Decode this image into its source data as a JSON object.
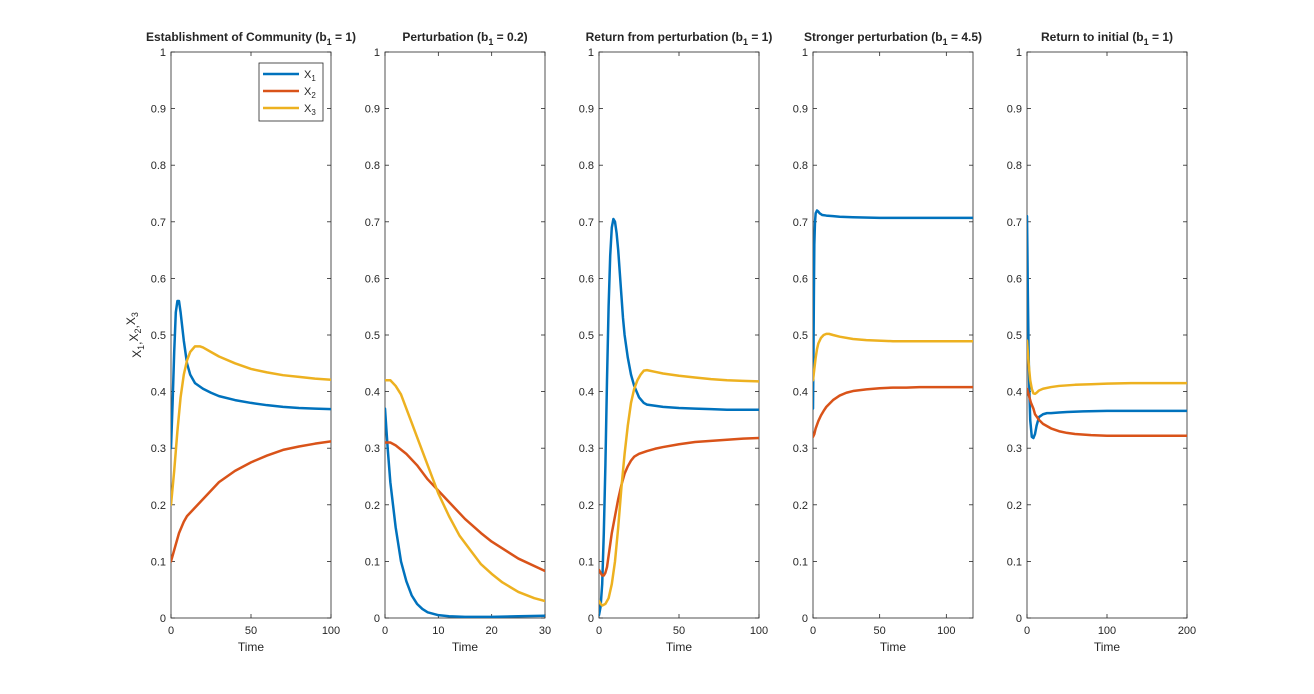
{
  "colors": {
    "x1": "#0072BD",
    "x2": "#D95319",
    "x3": "#EDB120",
    "axis": "#262626"
  },
  "legend": {
    "entries": [
      {
        "key": "x1",
        "label": "X",
        "sub": "1"
      },
      {
        "key": "x2",
        "label": "X",
        "sub": "2"
      },
      {
        "key": "x3",
        "label": "X",
        "sub": "3"
      }
    ]
  },
  "ylabel": {
    "parts": [
      [
        "X",
        "1"
      ],
      [
        "X",
        "2"
      ],
      [
        "X",
        "3"
      ]
    ],
    "separator": ","
  },
  "chart_data": [
    {
      "type": "line",
      "title": "Establishment of Community (b",
      "title_sub": "1",
      "title_tail": " = 1)",
      "xlabel": "Time",
      "xlim": [
        0,
        100
      ],
      "ylim": [
        0,
        1
      ],
      "xticks": [
        0,
        50,
        100
      ],
      "yticks": [
        0,
        0.1,
        0.2,
        0.3,
        0.4,
        0.5,
        0.6,
        0.7,
        0.8,
        0.9,
        1
      ],
      "series": [
        {
          "key": "x1",
          "x": [
            0,
            1,
            2,
            3,
            4,
            5,
            6,
            8,
            10,
            12,
            15,
            20,
            25,
            30,
            40,
            50,
            60,
            70,
            80,
            90,
            100
          ],
          "y": [
            0.3,
            0.38,
            0.47,
            0.54,
            0.56,
            0.56,
            0.54,
            0.49,
            0.45,
            0.43,
            0.415,
            0.405,
            0.398,
            0.392,
            0.385,
            0.38,
            0.376,
            0.373,
            0.371,
            0.37,
            0.369
          ]
        },
        {
          "key": "x2",
          "x": [
            0,
            2,
            5,
            8,
            10,
            15,
            20,
            25,
            30,
            40,
            50,
            60,
            70,
            80,
            90,
            100
          ],
          "y": [
            0.1,
            0.12,
            0.15,
            0.17,
            0.18,
            0.195,
            0.21,
            0.225,
            0.24,
            0.26,
            0.275,
            0.287,
            0.297,
            0.303,
            0.308,
            0.312
          ]
        },
        {
          "key": "x3",
          "x": [
            0,
            2,
            4,
            6,
            8,
            10,
            12,
            15,
            18,
            20,
            25,
            30,
            40,
            50,
            60,
            70,
            80,
            90,
            100
          ],
          "y": [
            0.2,
            0.26,
            0.33,
            0.39,
            0.43,
            0.455,
            0.47,
            0.48,
            0.48,
            0.478,
            0.47,
            0.462,
            0.45,
            0.44,
            0.434,
            0.429,
            0.426,
            0.423,
            0.421
          ]
        }
      ]
    },
    {
      "type": "line",
      "title": "Perturbation (b",
      "title_sub": "1",
      "title_tail": " = 0.2)",
      "xlabel": "Time",
      "xlim": [
        0,
        30
      ],
      "ylim": [
        0,
        1
      ],
      "xticks": [
        0,
        10,
        20,
        30
      ],
      "yticks": [
        0,
        0.1,
        0.2,
        0.3,
        0.4,
        0.5,
        0.6,
        0.7,
        0.8,
        0.9,
        1
      ],
      "series": [
        {
          "key": "x1",
          "x": [
            0,
            0.5,
            1,
            1.5,
            2,
            3,
            4,
            5,
            6,
            7,
            8,
            10,
            12,
            15,
            20,
            25,
            30
          ],
          "y": [
            0.37,
            0.3,
            0.24,
            0.2,
            0.16,
            0.1,
            0.065,
            0.04,
            0.025,
            0.016,
            0.01,
            0.005,
            0.003,
            0.002,
            0.002,
            0.003,
            0.004
          ]
        },
        {
          "key": "x2",
          "x": [
            0,
            1,
            2,
            4,
            6,
            8,
            10,
            12,
            15,
            18,
            20,
            25,
            30
          ],
          "y": [
            0.31,
            0.31,
            0.305,
            0.29,
            0.27,
            0.245,
            0.225,
            0.205,
            0.175,
            0.15,
            0.135,
            0.105,
            0.083
          ]
        },
        {
          "key": "x3",
          "x": [
            0,
            1,
            2,
            3,
            4,
            5,
            6,
            8,
            10,
            12,
            14,
            16,
            18,
            20,
            22,
            25,
            28,
            30
          ],
          "y": [
            0.42,
            0.42,
            0.41,
            0.395,
            0.37,
            0.345,
            0.32,
            0.27,
            0.22,
            0.18,
            0.145,
            0.12,
            0.095,
            0.078,
            0.063,
            0.046,
            0.035,
            0.03
          ]
        }
      ]
    },
    {
      "type": "line",
      "title": "Return from perturbation (b",
      "title_sub": "1",
      "title_tail": " = 1)",
      "xlabel": "Time",
      "xlim": [
        0,
        100
      ],
      "ylim": [
        0,
        1
      ],
      "xticks": [
        0,
        50,
        100
      ],
      "yticks": [
        0,
        0.1,
        0.2,
        0.3,
        0.4,
        0.5,
        0.6,
        0.7,
        0.8,
        0.9,
        1
      ],
      "series": [
        {
          "key": "x1",
          "x": [
            0,
            1,
            2,
            3,
            4,
            5,
            6,
            7,
            8,
            9,
            10,
            11,
            12,
            13,
            14,
            15,
            16,
            18,
            20,
            22,
            25,
            28,
            30,
            35,
            40,
            50,
            60,
            70,
            80,
            90,
            100
          ],
          "y": [
            0.005,
            0.02,
            0.06,
            0.15,
            0.27,
            0.42,
            0.55,
            0.64,
            0.69,
            0.705,
            0.7,
            0.68,
            0.65,
            0.61,
            0.57,
            0.53,
            0.5,
            0.46,
            0.43,
            0.41,
            0.39,
            0.38,
            0.377,
            0.375,
            0.373,
            0.371,
            0.37,
            0.369,
            0.368,
            0.368,
            0.368
          ]
        },
        {
          "key": "x2",
          "x": [
            0,
            1,
            2,
            3,
            4,
            5,
            6,
            7,
            8,
            10,
            12,
            14,
            16,
            18,
            20,
            22,
            25,
            30,
            35,
            40,
            50,
            60,
            70,
            80,
            90,
            100
          ],
          "y": [
            0.085,
            0.08,
            0.075,
            0.075,
            0.08,
            0.09,
            0.11,
            0.13,
            0.15,
            0.18,
            0.21,
            0.235,
            0.255,
            0.268,
            0.278,
            0.285,
            0.29,
            0.295,
            0.299,
            0.302,
            0.307,
            0.311,
            0.313,
            0.315,
            0.317,
            0.318
          ]
        },
        {
          "key": "x3",
          "x": [
            0,
            1,
            2,
            4,
            6,
            8,
            10,
            12,
            14,
            16,
            18,
            20,
            22,
            24,
            26,
            28,
            30,
            35,
            40,
            50,
            60,
            70,
            80,
            90,
            100
          ],
          "y": [
            0.03,
            0.025,
            0.022,
            0.025,
            0.035,
            0.06,
            0.1,
            0.16,
            0.23,
            0.29,
            0.34,
            0.38,
            0.405,
            0.42,
            0.43,
            0.437,
            0.438,
            0.435,
            0.432,
            0.428,
            0.425,
            0.422,
            0.42,
            0.419,
            0.418
          ]
        }
      ]
    },
    {
      "type": "line",
      "title": "Stronger perturbation (b",
      "title_sub": "1",
      "title_tail": " = 4.5)",
      "xlabel": "Time",
      "xlim": [
        0,
        120
      ],
      "ylim": [
        0,
        1
      ],
      "xticks": [
        0,
        50,
        100
      ],
      "yticks": [
        0,
        0.1,
        0.2,
        0.3,
        0.4,
        0.5,
        0.6,
        0.7,
        0.8,
        0.9,
        1
      ],
      "series": [
        {
          "key": "x1",
          "x": [
            0,
            0.3,
            0.7,
            1,
            1.5,
            2,
            3,
            4,
            5,
            7,
            10,
            15,
            20,
            30,
            50,
            80,
            120
          ],
          "y": [
            0.37,
            0.45,
            0.58,
            0.66,
            0.7,
            0.715,
            0.72,
            0.718,
            0.715,
            0.712,
            0.711,
            0.71,
            0.709,
            0.708,
            0.707,
            0.707,
            0.707
          ]
        },
        {
          "key": "x2",
          "x": [
            0,
            1,
            2,
            4,
            6,
            8,
            10,
            15,
            20,
            25,
            30,
            40,
            50,
            60,
            70,
            80,
            100,
            120
          ],
          "y": [
            0.32,
            0.325,
            0.335,
            0.348,
            0.358,
            0.366,
            0.373,
            0.385,
            0.393,
            0.398,
            0.401,
            0.404,
            0.406,
            0.407,
            0.407,
            0.408,
            0.408,
            0.408
          ]
        },
        {
          "key": "x3",
          "x": [
            0,
            1,
            2,
            3,
            4,
            6,
            8,
            10,
            12,
            15,
            20,
            30,
            40,
            60,
            80,
            100,
            120
          ],
          "y": [
            0.42,
            0.44,
            0.46,
            0.475,
            0.485,
            0.495,
            0.5,
            0.502,
            0.502,
            0.5,
            0.497,
            0.493,
            0.491,
            0.489,
            0.489,
            0.489,
            0.489
          ]
        }
      ]
    },
    {
      "type": "line",
      "title": "Return to initial (b",
      "title_sub": "1",
      "title_tail": " = 1)",
      "xlabel": "Time",
      "xlim": [
        0,
        200
      ],
      "ylim": [
        0,
        1
      ],
      "xticks": [
        0,
        100,
        200
      ],
      "yticks": [
        0,
        0.1,
        0.2,
        0.3,
        0.4,
        0.5,
        0.6,
        0.7,
        0.8,
        0.9,
        1
      ],
      "series": [
        {
          "key": "x1",
          "x": [
            0,
            0.5,
            1,
            2,
            3,
            4,
            6,
            8,
            10,
            12,
            15,
            20,
            25,
            30,
            40,
            50,
            70,
            100,
            150,
            200
          ],
          "y": [
            0.71,
            0.65,
            0.58,
            0.47,
            0.4,
            0.35,
            0.32,
            0.318,
            0.325,
            0.34,
            0.355,
            0.36,
            0.362,
            0.362,
            0.363,
            0.364,
            0.365,
            0.366,
            0.366,
            0.366
          ]
        },
        {
          "key": "x2",
          "x": [
            0,
            2,
            5,
            8,
            10,
            15,
            20,
            30,
            40,
            50,
            60,
            80,
            100,
            130,
            160,
            200
          ],
          "y": [
            0.405,
            0.395,
            0.38,
            0.37,
            0.36,
            0.35,
            0.343,
            0.335,
            0.33,
            0.327,
            0.325,
            0.323,
            0.322,
            0.322,
            0.322,
            0.322
          ]
        },
        {
          "key": "x3",
          "x": [
            0,
            1,
            2,
            4,
            6,
            8,
            10,
            12,
            15,
            20,
            30,
            40,
            60,
            80,
            100,
            130,
            160,
            200
          ],
          "y": [
            0.49,
            0.47,
            0.45,
            0.42,
            0.405,
            0.397,
            0.396,
            0.398,
            0.402,
            0.405,
            0.408,
            0.41,
            0.412,
            0.413,
            0.414,
            0.415,
            0.415,
            0.415
          ]
        }
      ]
    }
  ]
}
